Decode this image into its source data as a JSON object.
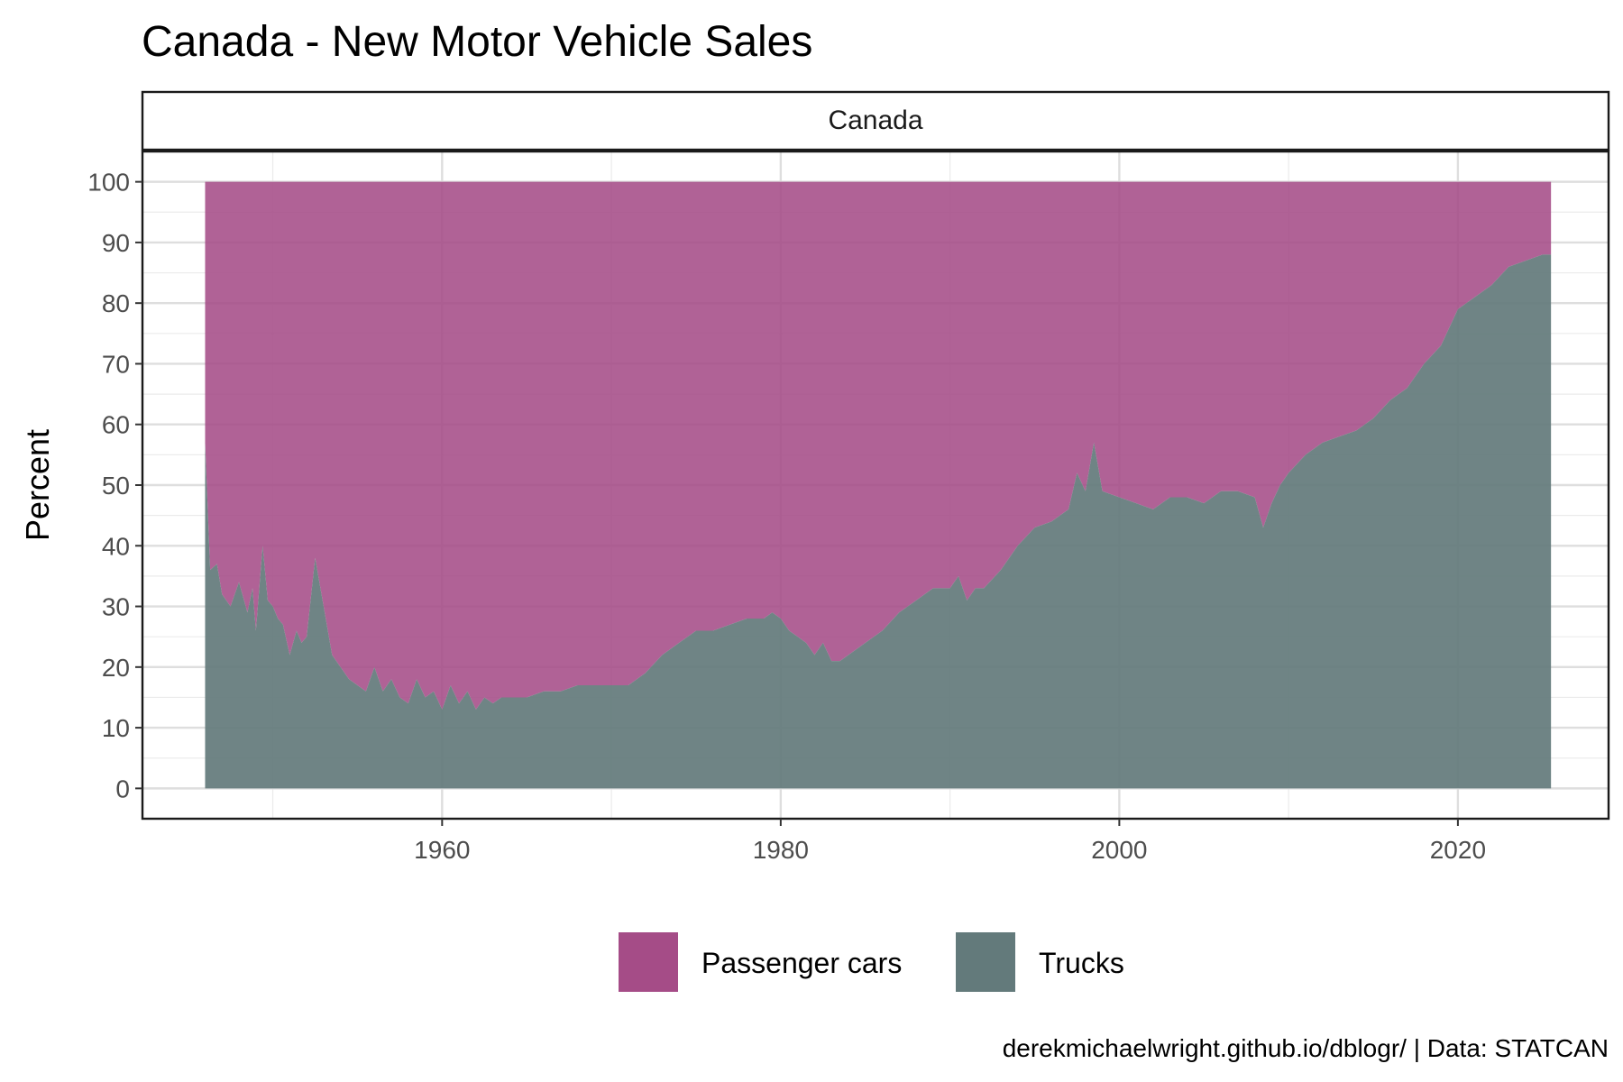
{
  "chart_data": {
    "type": "area",
    "stacking": "percent",
    "title": "Canada - New Motor Vehicle Sales",
    "facet_label": "Canada",
    "xlabel": "",
    "ylabel": "Percent",
    "xlim": [
      1942.3,
      2028.9
    ],
    "ylim": [
      -5,
      105
    ],
    "x_ticks": [
      1960,
      1980,
      2000,
      2020
    ],
    "y_ticks": [
      0,
      10,
      20,
      30,
      40,
      50,
      60,
      70,
      80,
      90,
      100
    ],
    "grid": true,
    "legend_position": "bottom",
    "series": [
      {
        "name": "Passenger cars",
        "color": "#a54c87",
        "description": "Remainder to 100 percent (100 - Trucks)"
      },
      {
        "name": "Trucks",
        "color": "#637a7b",
        "x": [
          1946.0,
          1946.3,
          1946.7,
          1947.0,
          1947.5,
          1948.0,
          1948.5,
          1948.8,
          1949.0,
          1949.4,
          1949.7,
          1950.0,
          1950.3,
          1950.6,
          1951.0,
          1951.4,
          1951.7,
          1952.0,
          1952.5,
          1953.0,
          1953.5,
          1954.0,
          1954.5,
          1955.0,
          1955.5,
          1956.0,
          1956.5,
          1957.0,
          1957.5,
          1958.0,
          1958.5,
          1959.0,
          1959.5,
          1960.0,
          1960.5,
          1961.0,
          1961.5,
          1962.0,
          1962.5,
          1963.0,
          1963.5,
          1964.0,
          1965.0,
          1966.0,
          1967.0,
          1968.0,
          1969.0,
          1970.0,
          1971.0,
          1972.0,
          1973.0,
          1974.0,
          1975.0,
          1976.0,
          1977.0,
          1978.0,
          1979.0,
          1979.5,
          1980.0,
          1980.5,
          1981.0,
          1981.5,
          1982.0,
          1982.5,
          1983.0,
          1983.5,
          1984.0,
          1985.0,
          1986.0,
          1987.0,
          1988.0,
          1989.0,
          1990.0,
          1990.5,
          1991.0,
          1991.5,
          1992.0,
          1993.0,
          1994.0,
          1995.0,
          1996.0,
          1997.0,
          1997.5,
          1998.0,
          1998.5,
          1999.0,
          2000.0,
          2001.0,
          2002.0,
          2003.0,
          2004.0,
          2005.0,
          2006.0,
          2007.0,
          2008.0,
          2008.5,
          2009.0,
          2009.5,
          2010.0,
          2011.0,
          2012.0,
          2013.0,
          2014.0,
          2015.0,
          2016.0,
          2017.0,
          2018.0,
          2019.0,
          2020.0,
          2021.0,
          2022.0,
          2023.0,
          2024.0,
          2025.0,
          2025.5
        ],
        "values": [
          57,
          36,
          37,
          32,
          30,
          34,
          29,
          33,
          26,
          40,
          31,
          30,
          28,
          27,
          22,
          26,
          24,
          25,
          38,
          30,
          22,
          20,
          18,
          17,
          16,
          20,
          16,
          18,
          15,
          14,
          18,
          15,
          16,
          13,
          17,
          14,
          16,
          13,
          15,
          14,
          15,
          15,
          15,
          16,
          16,
          17,
          17,
          17,
          17,
          19,
          22,
          24,
          26,
          26,
          27,
          28,
          28,
          29,
          28,
          26,
          25,
          24,
          22,
          24,
          21,
          21,
          22,
          24,
          26,
          29,
          31,
          33,
          33,
          35,
          31,
          33,
          33,
          36,
          40,
          43,
          44,
          46,
          52,
          49,
          57,
          49,
          48,
          47,
          46,
          48,
          48,
          47,
          49,
          49,
          48,
          43,
          47,
          50,
          52,
          55,
          57,
          58,
          59,
          61,
          64,
          66,
          70,
          73,
          79,
          81,
          83,
          86,
          87,
          88,
          88
        ]
      }
    ],
    "caption": "derekmichaelwright.github.io/dblogr/ | Data: STATCAN"
  }
}
